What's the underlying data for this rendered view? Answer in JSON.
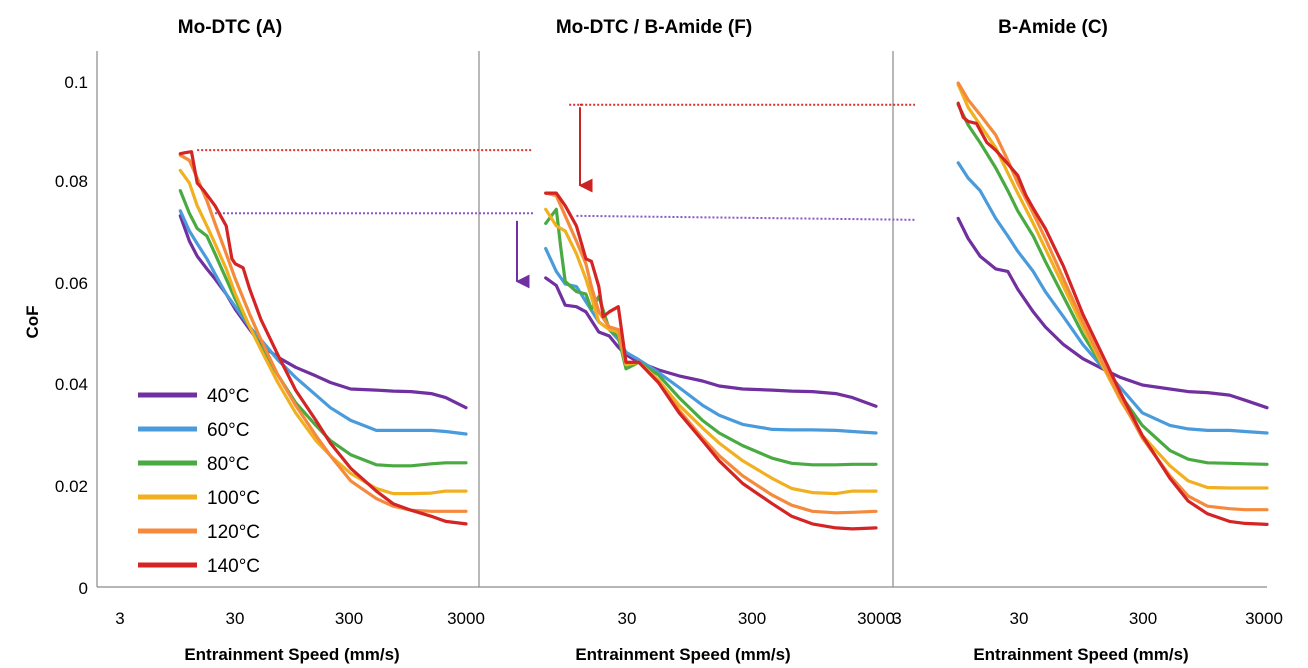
{
  "ylabel": "CoF",
  "y_ticks": [
    "0",
    "0.02",
    "0.04",
    "0.06",
    "0.08",
    "0.1"
  ],
  "x_tick_label_3": "3",
  "x_tick_label_3000_overlap_left": "3000",
  "x_tick_label_3000_overlap_mid": "3000",
  "x_tick_label_3_overlap_right": "3",
  "legend": [
    {
      "label": "40°C",
      "color": "#7030a0"
    },
    {
      "label": "60°C",
      "color": "#4a9bdc"
    },
    {
      "label": "80°C",
      "color": "#4aaa42"
    },
    {
      "label": "100°C",
      "color": "#f0b020"
    },
    {
      "label": "120°C",
      "color": "#f58a3c"
    },
    {
      "label": "140°C",
      "color": "#d42424"
    }
  ],
  "chart_data": [
    {
      "type": "line",
      "title": "Mo-DTC (A)",
      "xlabel": "Entrainment Speed (mm/s)",
      "ylabel": "CoF",
      "xscale": "log",
      "xlim": [
        3,
        3000
      ],
      "ylim": [
        0,
        0.1
      ],
      "x_ticks": [
        3,
        30,
        300,
        3000
      ],
      "x_tick_labels": [
        "3",
        "30",
        "300",
        "3000"
      ],
      "y_ticks": [
        0,
        0.02,
        0.04,
        0.06,
        0.08,
        0.1
      ],
      "grid": false,
      "legend_position": "bottom-left",
      "annotations": [
        {
          "kind": "dotted-reference-line",
          "color": "#e03030",
          "y": 0.0865,
          "x_range": [
            14,
            2500
          ]
        },
        {
          "kind": "dotted-reference-line",
          "color": "#8a55c8",
          "y": 0.074,
          "x_range": [
            20,
            2000
          ]
        }
      ],
      "series": [
        {
          "name": "40°C",
          "color": "#7030a0",
          "x": [
            10,
            12,
            14,
            17,
            20,
            25,
            30,
            40,
            50,
            70,
            100,
            150,
            200,
            300,
            500,
            700,
            1000,
            1500,
            2000,
            3000
          ],
          "y": [
            0.0735,
            0.0685,
            0.0655,
            0.063,
            0.061,
            0.058,
            0.055,
            0.051,
            0.048,
            0.0455,
            0.0435,
            0.0418,
            0.0405,
            0.0392,
            0.039,
            0.0388,
            0.0387,
            0.0383,
            0.0375,
            0.0355
          ]
        },
        {
          "name": "60°C",
          "color": "#4a9bdc",
          "x": [
            10,
            12,
            14,
            17,
            20,
            25,
            30,
            40,
            50,
            70,
            100,
            150,
            200,
            300,
            500,
            700,
            1000,
            1500,
            2000,
            3000
          ],
          "y": [
            0.0745,
            0.0705,
            0.068,
            0.065,
            0.062,
            0.058,
            0.0555,
            0.0515,
            0.049,
            0.045,
            0.0415,
            0.038,
            0.0355,
            0.033,
            0.031,
            0.031,
            0.031,
            0.031,
            0.0308,
            0.0303
          ]
        },
        {
          "name": "80°C",
          "color": "#4aaa42",
          "x": [
            10,
            12,
            14,
            17,
            20,
            25,
            30,
            40,
            50,
            70,
            100,
            150,
            200,
            300,
            500,
            700,
            1000,
            1500,
            2000,
            3000
          ],
          "y": [
            0.0785,
            0.074,
            0.071,
            0.0695,
            0.066,
            0.061,
            0.057,
            0.0515,
            0.0475,
            0.042,
            0.0365,
            0.032,
            0.029,
            0.0262,
            0.0242,
            0.024,
            0.024,
            0.0244,
            0.0246,
            0.0246
          ]
        },
        {
          "name": "100°C",
          "color": "#f0b020",
          "x": [
            10,
            12,
            14,
            17,
            20,
            25,
            30,
            40,
            50,
            70,
            100,
            150,
            200,
            300,
            500,
            700,
            1000,
            1500,
            2000,
            3000
          ],
          "y": [
            0.0825,
            0.08,
            0.0755,
            0.0715,
            0.068,
            0.063,
            0.058,
            0.0515,
            0.047,
            0.0405,
            0.0345,
            0.029,
            0.026,
            0.0225,
            0.0195,
            0.0185,
            0.0185,
            0.0186,
            0.019,
            0.019
          ]
        },
        {
          "name": "120°C",
          "color": "#f58a3c",
          "x": [
            10,
            12,
            14,
            17,
            20,
            25,
            30,
            40,
            50,
            70,
            100,
            150,
            200,
            300,
            500,
            700,
            1000,
            1500,
            2000,
            3000
          ],
          "y": [
            0.0855,
            0.0845,
            0.081,
            0.0765,
            0.072,
            0.066,
            0.061,
            0.054,
            0.049,
            0.042,
            0.036,
            0.03,
            0.026,
            0.021,
            0.0175,
            0.016,
            0.0152,
            0.015,
            0.015,
            0.015
          ]
        },
        {
          "name": "140°C",
          "color": "#d42424",
          "x": [
            10,
            11,
            12.5,
            14,
            16,
            20,
            25,
            28,
            30,
            35,
            40,
            50,
            70,
            100,
            150,
            200,
            300,
            500,
            700,
            1000,
            1500,
            2000,
            3000
          ],
          "y": [
            0.0858,
            0.086,
            0.0862,
            0.08,
            0.0785,
            0.0755,
            0.0715,
            0.065,
            0.064,
            0.0632,
            0.059,
            0.053,
            0.046,
            0.039,
            0.033,
            0.0285,
            0.0235,
            0.019,
            0.0165,
            0.0152,
            0.014,
            0.013,
            0.0125
          ]
        }
      ]
    },
    {
      "type": "line",
      "title": "Mo-DTC / B-Amide (F)",
      "xlabel": "Entrainment Speed (mm/s)",
      "xscale": "log",
      "xlim": [
        3,
        3000
      ],
      "ylim": [
        0,
        0.1
      ],
      "x_ticks": [
        30,
        300,
        3000
      ],
      "x_tick_labels": [
        "30",
        "300",
        "3000"
      ],
      "grid": false,
      "annotations": [
        {
          "kind": "dotted-reference-line",
          "color": "#e03030",
          "y": 0.0955,
          "x_range": [
            15,
            3000
          ]
        },
        {
          "kind": "dotted-reference-line",
          "color": "#8a55c8",
          "y": 0.0735,
          "x_range": [
            17,
            3000
          ]
        },
        {
          "kind": "down-arrow",
          "color": "#cc2222",
          "x": 15,
          "y_from": 0.095,
          "y_to": 0.0795
        },
        {
          "kind": "down-arrow",
          "color": "#7030a0",
          "x": 5.6,
          "y_from": 0.0725,
          "y_to": 0.0605
        }
      ],
      "series": [
        {
          "name": "40°C",
          "color": "#7030a0",
          "x": [
            10,
            12,
            14,
            17,
            20,
            25,
            30,
            35,
            40,
            50,
            70,
            100,
            150,
            200,
            300,
            500,
            700,
            1000,
            1500,
            2000,
            3000
          ],
          "y": [
            0.0612,
            0.0597,
            0.0558,
            0.0555,
            0.0545,
            0.0505,
            0.0497,
            0.0475,
            0.046,
            0.0445,
            0.043,
            0.0418,
            0.0408,
            0.0398,
            0.0392,
            0.039,
            0.0388,
            0.0387,
            0.0383,
            0.0375,
            0.0358
          ]
        },
        {
          "name": "60°C",
          "color": "#4a9bdc",
          "x": [
            10,
            12,
            14,
            17,
            20,
            25,
            30,
            35,
            40,
            50,
            70,
            100,
            150,
            200,
            300,
            500,
            700,
            1000,
            1500,
            2000,
            3000
          ],
          "y": [
            0.067,
            0.0625,
            0.06,
            0.0595,
            0.0565,
            0.0525,
            0.051,
            0.049,
            0.0465,
            0.045,
            0.0425,
            0.0395,
            0.036,
            0.034,
            0.0322,
            0.0312,
            0.0311,
            0.0311,
            0.031,
            0.0308,
            0.0305
          ]
        },
        {
          "name": "80°C",
          "color": "#4aaa42",
          "x": [
            10,
            12,
            13,
            14,
            17,
            20,
            22,
            25,
            30,
            35,
            40,
            50,
            70,
            100,
            150,
            200,
            300,
            500,
            700,
            1000,
            1500,
            2000,
            3000
          ],
          "y": [
            0.072,
            0.0748,
            0.067,
            0.0605,
            0.0585,
            0.058,
            0.055,
            0.0575,
            0.051,
            0.0495,
            0.0432,
            0.0445,
            0.042,
            0.0375,
            0.033,
            0.0305,
            0.028,
            0.0255,
            0.0245,
            0.0242,
            0.0242,
            0.0243,
            0.0243
          ]
        },
        {
          "name": "100°C",
          "color": "#f0b020",
          "x": [
            10,
            12,
            14,
            17,
            20,
            22,
            25,
            30,
            35,
            40,
            50,
            70,
            100,
            150,
            200,
            300,
            500,
            700,
            1000,
            1500,
            2000,
            3000
          ],
          "y": [
            0.0748,
            0.0715,
            0.0705,
            0.066,
            0.061,
            0.0575,
            0.0525,
            0.051,
            0.0505,
            0.044,
            0.0445,
            0.041,
            0.036,
            0.0315,
            0.0285,
            0.025,
            0.0215,
            0.0195,
            0.0187,
            0.0185,
            0.019,
            0.019
          ]
        },
        {
          "name": "120°C",
          "color": "#f58a3c",
          "x": [
            10,
            12,
            14,
            17,
            20,
            22,
            25,
            30,
            35,
            40,
            50,
            70,
            100,
            150,
            200,
            300,
            500,
            700,
            1000,
            1500,
            2000,
            3000
          ],
          "y": [
            0.078,
            0.0775,
            0.0735,
            0.0685,
            0.064,
            0.0595,
            0.0545,
            0.0515,
            0.051,
            0.0445,
            0.0445,
            0.0405,
            0.035,
            0.0295,
            0.026,
            0.022,
            0.0182,
            0.0162,
            0.015,
            0.0147,
            0.0148,
            0.015
          ]
        },
        {
          "name": "140°C",
          "color": "#d42424",
          "x": [
            10,
            12,
            14,
            17,
            20,
            22,
            25,
            27,
            30,
            35,
            40,
            50,
            70,
            100,
            150,
            200,
            300,
            500,
            700,
            1000,
            1500,
            2000,
            3000
          ],
          "y": [
            0.078,
            0.078,
            0.0755,
            0.0715,
            0.065,
            0.0645,
            0.0595,
            0.0535,
            0.0545,
            0.0555,
            0.0445,
            0.0445,
            0.0405,
            0.0345,
            0.029,
            0.025,
            0.0205,
            0.0165,
            0.014,
            0.0125,
            0.0117,
            0.0115,
            0.0117
          ]
        }
      ]
    },
    {
      "type": "line",
      "title": "B-Amide (C)",
      "xlabel": "Entrainment Speed (mm/s)",
      "xscale": "log",
      "xlim": [
        3,
        3000
      ],
      "ylim": [
        0,
        0.1
      ],
      "x_ticks": [
        3,
        30,
        300,
        3000
      ],
      "x_tick_labels": [
        "3",
        "30",
        "300",
        "3000"
      ],
      "grid": false,
      "series": [
        {
          "name": "40°C",
          "color": "#7030a0",
          "x": [
            10,
            12,
            15,
            20,
            25,
            30,
            40,
            50,
            70,
            100,
            150,
            200,
            300,
            500,
            700,
            1000,
            1500,
            2000,
            3000
          ],
          "y": [
            0.073,
            0.069,
            0.0655,
            0.063,
            0.0625,
            0.059,
            0.0545,
            0.0515,
            0.048,
            0.0452,
            0.043,
            0.0415,
            0.04,
            0.0392,
            0.0387,
            0.0385,
            0.038,
            0.037,
            0.0355
          ]
        },
        {
          "name": "60°C",
          "color": "#4a9bdc",
          "x": [
            10,
            12,
            15,
            20,
            25,
            30,
            40,
            50,
            70,
            100,
            150,
            200,
            300,
            500,
            700,
            1000,
            1500,
            2000,
            3000
          ],
          "y": [
            0.084,
            0.081,
            0.0785,
            0.073,
            0.0695,
            0.0665,
            0.0625,
            0.0585,
            0.0535,
            0.048,
            0.043,
            0.0395,
            0.0345,
            0.032,
            0.0313,
            0.031,
            0.031,
            0.0308,
            0.0305
          ]
        },
        {
          "name": "80°C",
          "color": "#4aaa42",
          "x": [
            10,
            12,
            15,
            20,
            25,
            30,
            40,
            50,
            70,
            100,
            150,
            200,
            300,
            500,
            700,
            1000,
            1500,
            2000,
            3000
          ],
          "y": [
            0.0955,
            0.0915,
            0.088,
            0.083,
            0.0785,
            0.0745,
            0.0695,
            0.0645,
            0.0575,
            0.05,
            0.043,
            0.038,
            0.032,
            0.027,
            0.0253,
            0.0246,
            0.0245,
            0.0244,
            0.0243
          ]
        },
        {
          "name": "100°C",
          "color": "#f0b020",
          "x": [
            10,
            12,
            15,
            20,
            25,
            30,
            40,
            50,
            70,
            100,
            150,
            200,
            300,
            500,
            700,
            1000,
            1500,
            2000,
            3000
          ],
          "y": [
            0.0995,
            0.095,
            0.0915,
            0.087,
            0.082,
            0.078,
            0.072,
            0.067,
            0.0595,
            0.0515,
            0.043,
            0.037,
            0.03,
            0.024,
            0.021,
            0.0197,
            0.0196,
            0.0196,
            0.0196
          ]
        },
        {
          "name": "120°C",
          "color": "#f58a3c",
          "x": [
            10,
            12,
            15,
            20,
            25,
            30,
            40,
            50,
            70,
            100,
            150,
            200,
            300,
            500,
            700,
            1000,
            1500,
            2000,
            3000
          ],
          "y": [
            0.0998,
            0.0965,
            0.0935,
            0.0895,
            0.0845,
            0.08,
            0.074,
            0.069,
            0.061,
            0.0525,
            0.0435,
            0.0375,
            0.0295,
            0.022,
            0.018,
            0.016,
            0.0155,
            0.0153,
            0.0153
          ]
        },
        {
          "name": "140°C",
          "color": "#d42424",
          "x": [
            10,
            11,
            12,
            14,
            17,
            20,
            25,
            30,
            35,
            40,
            50,
            70,
            100,
            150,
            200,
            300,
            500,
            700,
            1000,
            1500,
            2000,
            3000
          ],
          "y": [
            0.0958,
            0.093,
            0.0922,
            0.0918,
            0.088,
            0.0865,
            0.0838,
            0.0815,
            0.0775,
            0.075,
            0.071,
            0.0635,
            0.054,
            0.045,
            0.0385,
            0.03,
            0.0215,
            0.017,
            0.0145,
            0.013,
            0.0126,
            0.0124
          ]
        }
      ]
    }
  ]
}
